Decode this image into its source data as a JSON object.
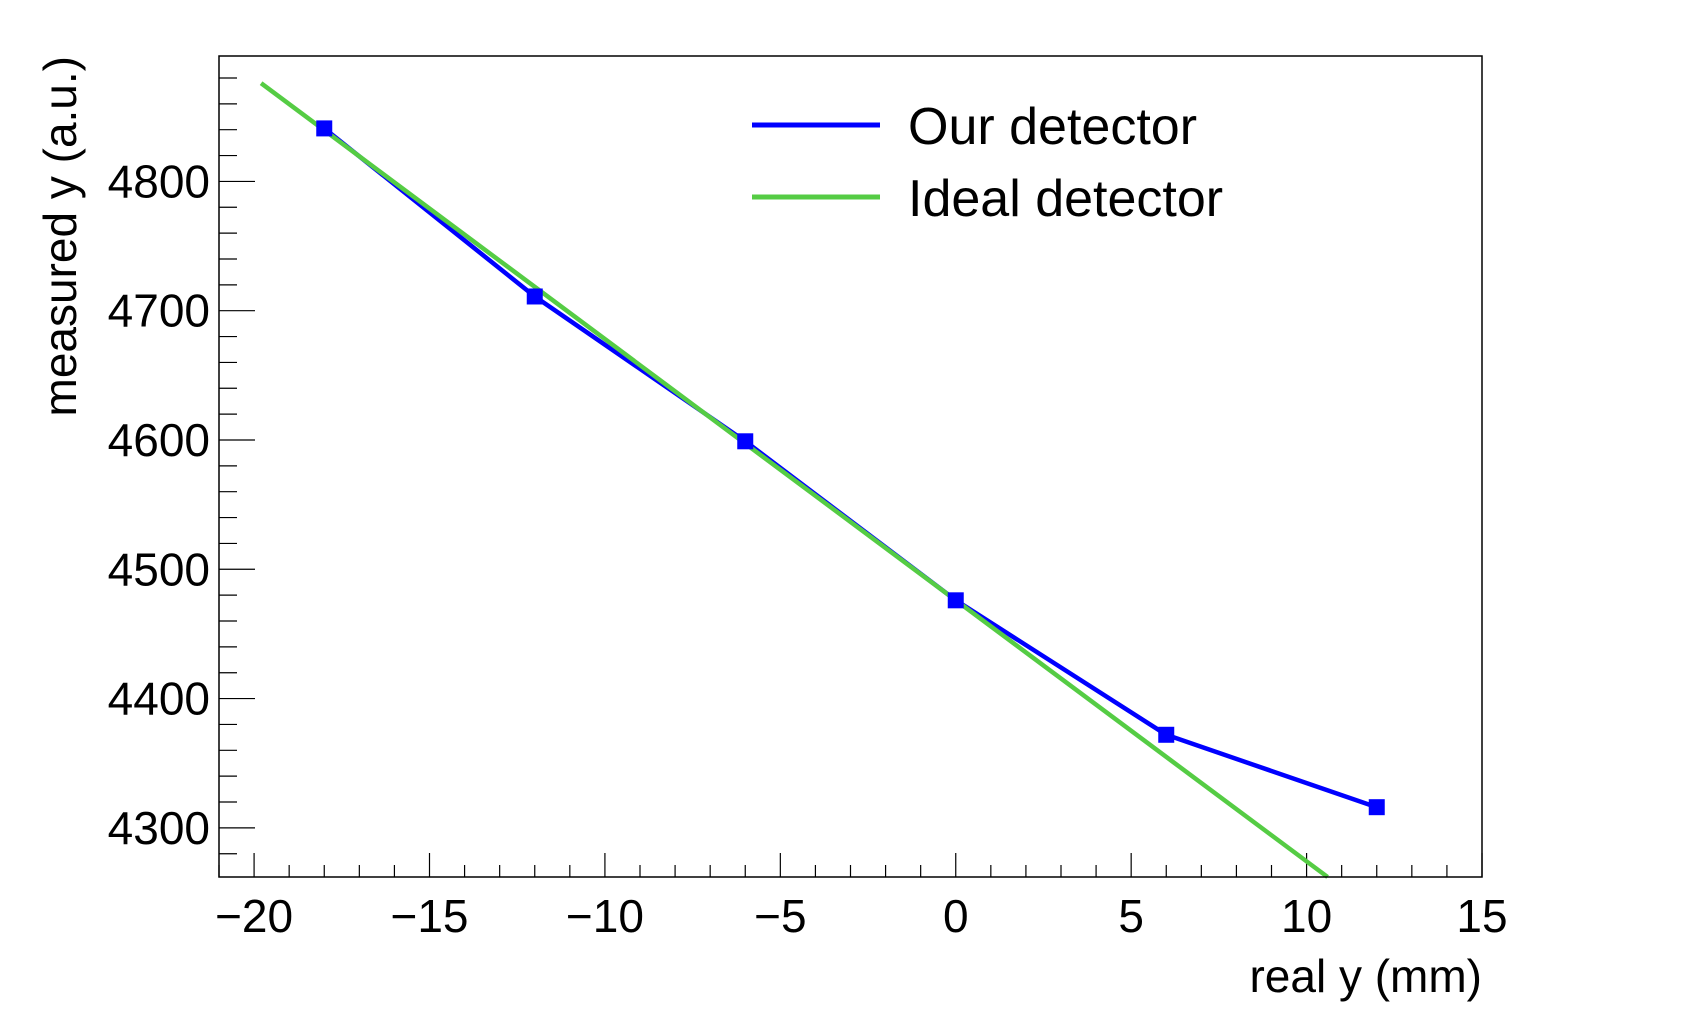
{
  "chart_data": {
    "type": "line",
    "xlabel": "real y (mm)",
    "ylabel": "measured y (a.u.)",
    "xlim": [
      -21,
      15
    ],
    "ylim": [
      4262,
      4897
    ],
    "x_ticks": [
      -20,
      -15,
      -10,
      -5,
      0,
      5,
      10,
      15
    ],
    "x_tick_labels": [
      "−20",
      "−15",
      "−10",
      "−5",
      "0",
      "5",
      "10",
      "15"
    ],
    "y_ticks": [
      4300,
      4400,
      4500,
      4600,
      4700,
      4800
    ],
    "y_tick_labels": [
      "4300",
      "4400",
      "4500",
      "4600",
      "4700",
      "4800"
    ],
    "grid": false,
    "legend_position": "top-right",
    "series": [
      {
        "name": "Our detector",
        "color": "#0000ff",
        "marker": "square",
        "x": [
          -18,
          -12,
          -6,
          0,
          6,
          12
        ],
        "y": [
          4841,
          4711,
          4599,
          4476,
          4372,
          4316
        ]
      },
      {
        "name": "Ideal detector",
        "color": "#55cc44",
        "marker": "none",
        "x": [
          -19.8,
          10.6
        ],
        "y": [
          4876,
          4262
        ]
      }
    ]
  }
}
